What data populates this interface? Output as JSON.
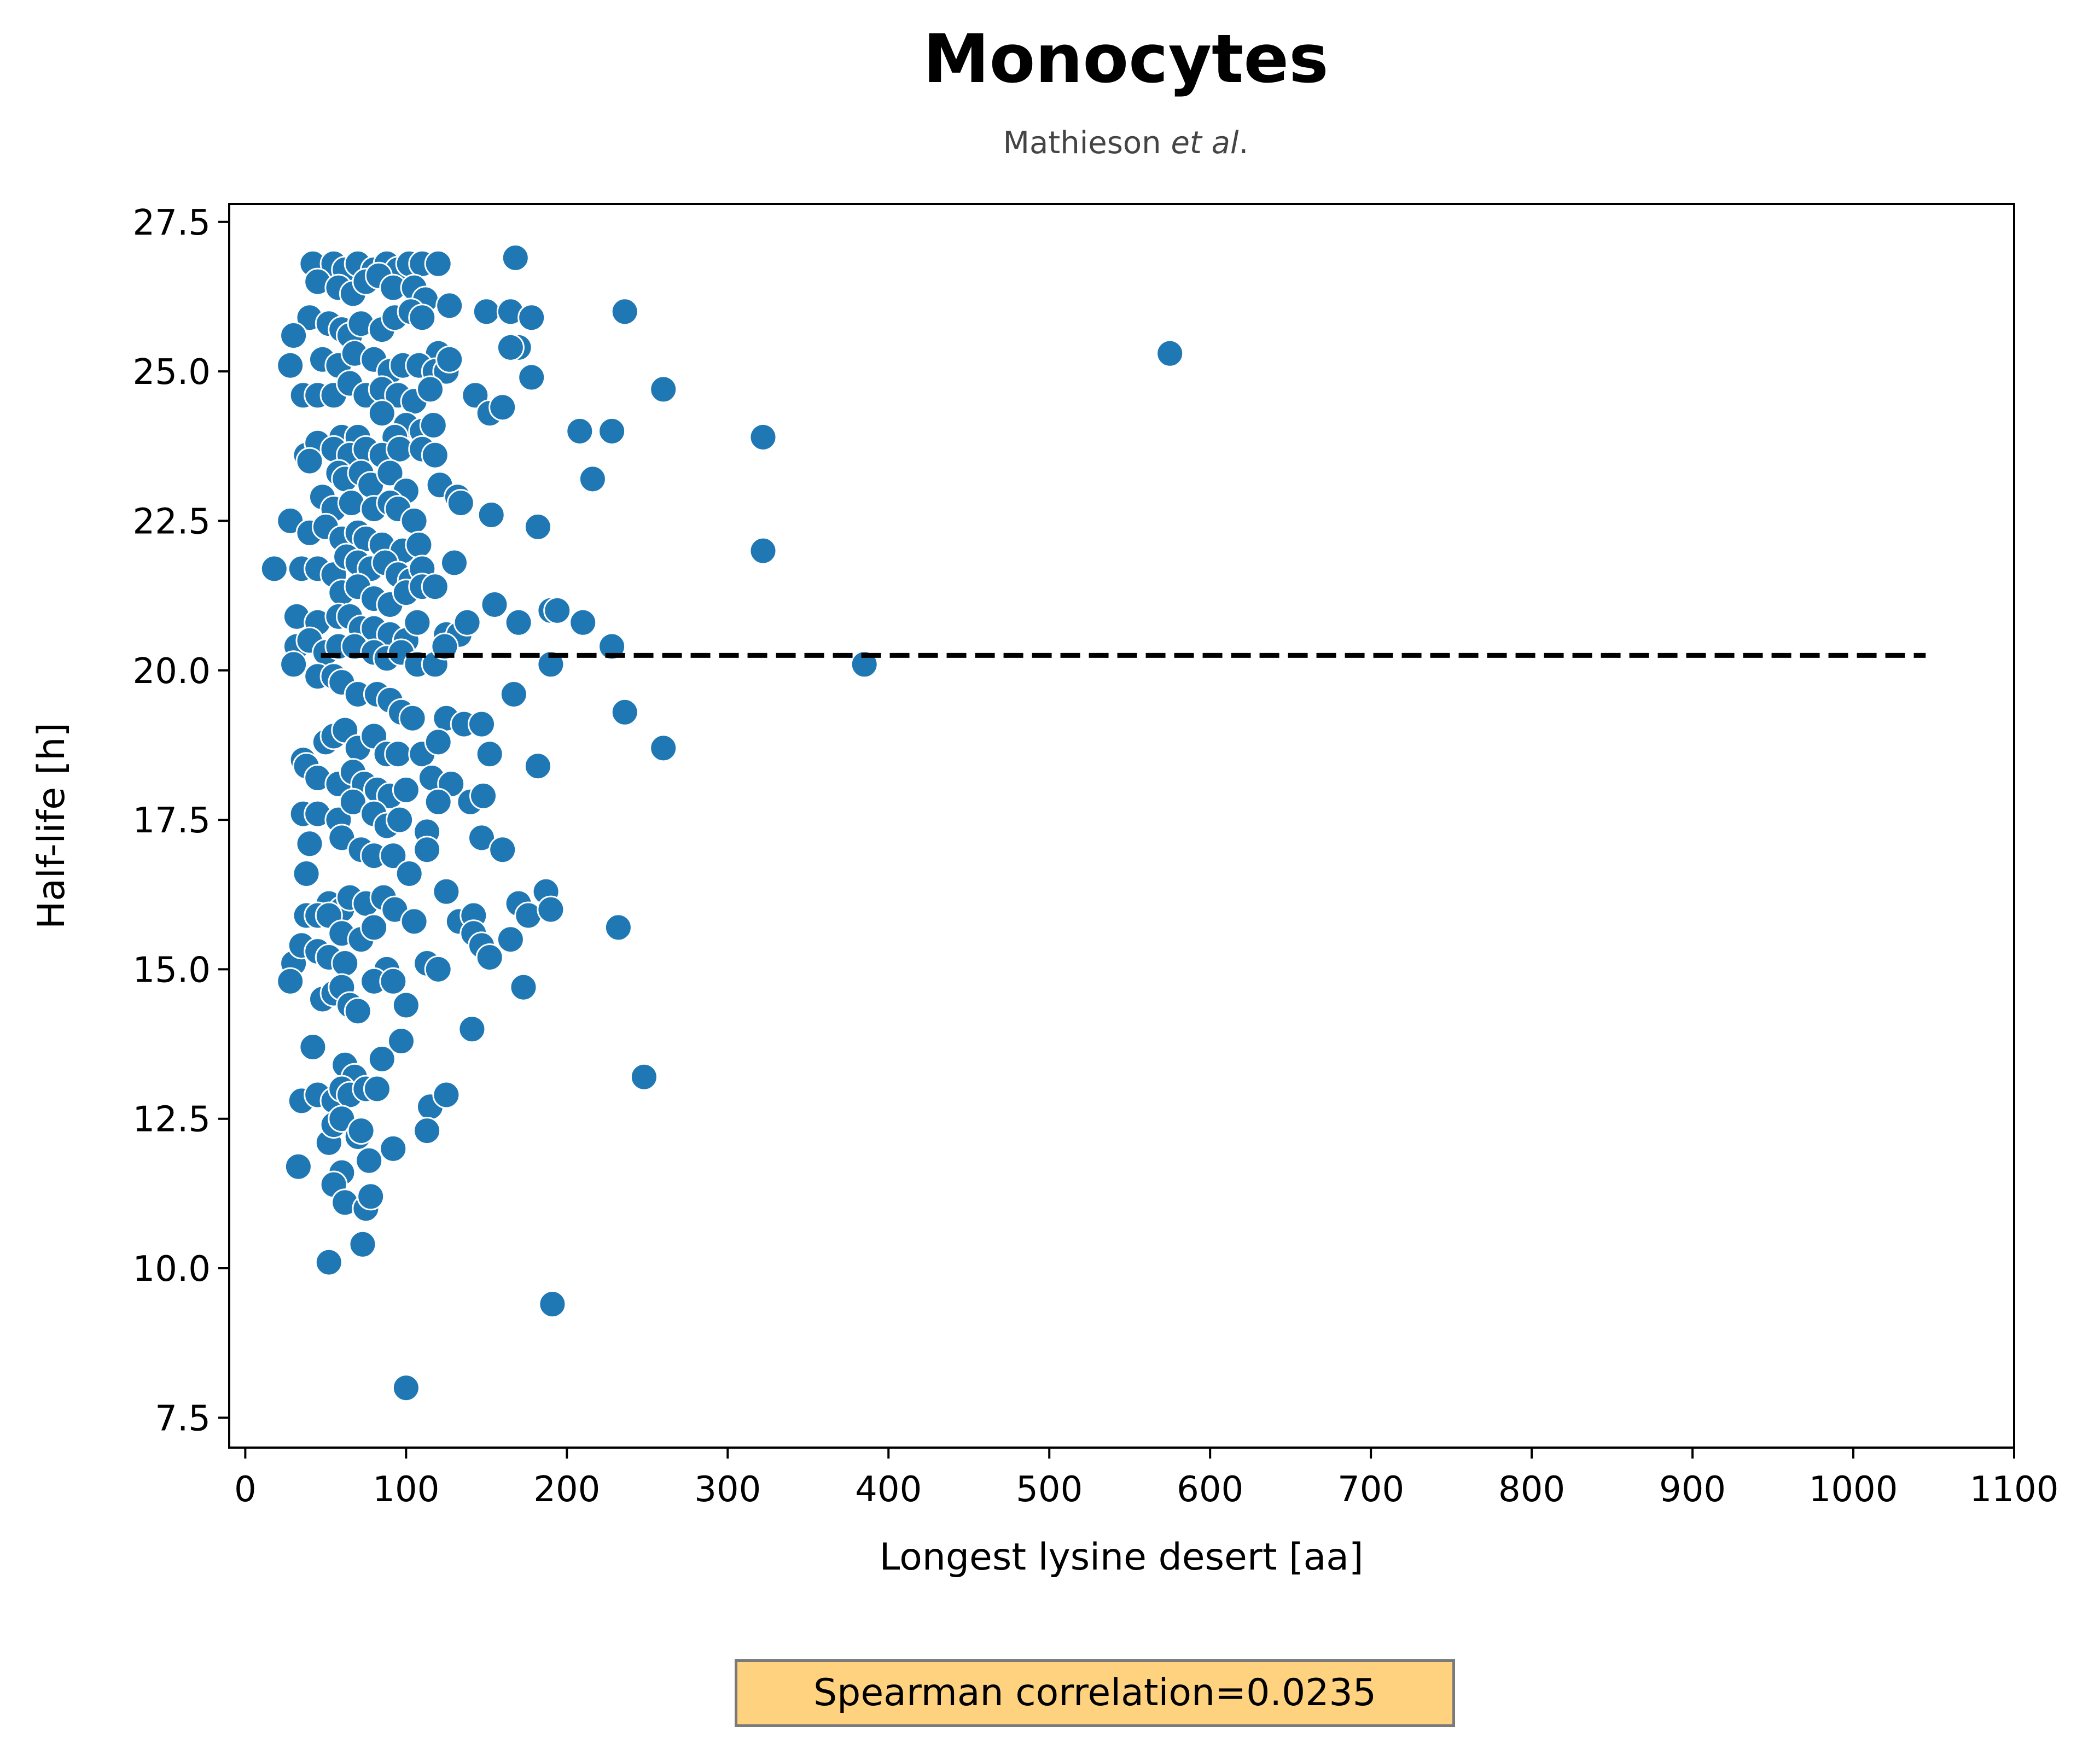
{
  "chart_data": {
    "type": "scatter",
    "title": "Monocytes",
    "subtitle": {
      "author": "Mathieson ",
      "etal": "et al",
      "suffix": "."
    },
    "xlabel": "Longest lysine desert [aa]",
    "ylabel": "Half-life [h]",
    "xlim": [
      -10,
      1100
    ],
    "ylim": [
      7.0,
      27.8
    ],
    "xticks": [
      0,
      100,
      200,
      300,
      400,
      500,
      600,
      700,
      800,
      900,
      1000,
      1100
    ],
    "yticks": [
      7.5,
      10.0,
      12.5,
      15.0,
      17.5,
      20.0,
      22.5,
      25.0,
      27.5
    ],
    "grid": false,
    "marker_color": "#1f77b4",
    "reference_line": {
      "style": "dashed",
      "color": "#000000",
      "y": 20.25,
      "x": [
        47,
        1045
      ]
    },
    "annotation": "Spearman correlation=0.0235",
    "series": [
      {
        "points": [
          [
            42,
            26.8
          ],
          [
            55,
            26.8
          ],
          [
            62,
            26.7
          ],
          [
            70,
            26.8
          ],
          [
            80,
            26.7
          ],
          [
            88,
            26.8
          ],
          [
            95,
            26.7
          ],
          [
            102,
            26.8
          ],
          [
            110,
            26.8
          ],
          [
            120,
            26.8
          ],
          [
            168,
            26.9
          ],
          [
            45,
            26.5
          ],
          [
            58,
            26.4
          ],
          [
            67,
            26.3
          ],
          [
            75,
            26.5
          ],
          [
            83,
            26.6
          ],
          [
            92,
            26.4
          ],
          [
            105,
            26.4
          ],
          [
            112,
            26.2
          ],
          [
            127,
            26.1
          ],
          [
            150,
            26.0
          ],
          [
            165,
            26.0
          ],
          [
            178,
            25.9
          ],
          [
            236,
            26.0
          ],
          [
            40,
            25.9
          ],
          [
            52,
            25.8
          ],
          [
            60,
            25.7
          ],
          [
            65,
            25.6
          ],
          [
            72,
            25.8
          ],
          [
            85,
            25.7
          ],
          [
            93,
            25.9
          ],
          [
            103,
            26.0
          ],
          [
            110,
            25.9
          ],
          [
            120,
            25.3
          ],
          [
            30,
            25.6
          ],
          [
            170,
            25.4
          ],
          [
            165,
            25.4
          ],
          [
            28,
            25.1
          ],
          [
            48,
            25.2
          ],
          [
            58,
            25.1
          ],
          [
            68,
            25.3
          ],
          [
            80,
            25.2
          ],
          [
            90,
            25.0
          ],
          [
            98,
            25.1
          ],
          [
            108,
            25.1
          ],
          [
            118,
            25.0
          ],
          [
            125,
            25.0
          ],
          [
            127,
            25.2
          ],
          [
            178,
            24.9
          ],
          [
            260,
            24.7
          ],
          [
            36,
            24.6
          ],
          [
            45,
            24.6
          ],
          [
            55,
            24.6
          ],
          [
            65,
            24.8
          ],
          [
            75,
            24.6
          ],
          [
            85,
            24.7
          ],
          [
            95,
            24.6
          ],
          [
            105,
            24.5
          ],
          [
            115,
            24.7
          ],
          [
            143,
            24.6
          ],
          [
            152,
            24.3
          ],
          [
            160,
            24.4
          ],
          [
            85,
            24.3
          ],
          [
            100,
            24.1
          ],
          [
            110,
            24.0
          ],
          [
            117,
            24.1
          ],
          [
            208,
            24.0
          ],
          [
            228,
            24.0
          ],
          [
            322,
            23.9
          ],
          [
            60,
            23.9
          ],
          [
            70,
            23.9
          ],
          [
            93,
            23.9
          ],
          [
            38,
            23.6
          ],
          [
            45,
            23.8
          ],
          [
            55,
            23.7
          ],
          [
            65,
            23.6
          ],
          [
            75,
            23.7
          ],
          [
            85,
            23.6
          ],
          [
            96,
            23.7
          ],
          [
            110,
            23.7
          ],
          [
            118,
            23.6
          ],
          [
            216,
            23.2
          ],
          [
            40,
            23.5
          ],
          [
            58,
            23.3
          ],
          [
            62,
            23.2
          ],
          [
            72,
            23.3
          ],
          [
            78,
            23.1
          ],
          [
            90,
            23.3
          ],
          [
            100,
            23.0
          ],
          [
            121,
            23.1
          ],
          [
            132,
            22.9
          ],
          [
            134,
            22.8
          ],
          [
            48,
            22.9
          ],
          [
            55,
            22.7
          ],
          [
            66,
            22.8
          ],
          [
            80,
            22.7
          ],
          [
            90,
            22.8
          ],
          [
            95,
            22.7
          ],
          [
            105,
            22.5
          ],
          [
            153,
            22.6
          ],
          [
            182,
            22.4
          ],
          [
            28,
            22.5
          ],
          [
            40,
            22.3
          ],
          [
            50,
            22.4
          ],
          [
            60,
            22.2
          ],
          [
            70,
            22.3
          ],
          [
            75,
            22.2
          ],
          [
            85,
            22.1
          ],
          [
            98,
            22.0
          ],
          [
            108,
            22.1
          ],
          [
            322,
            22.0
          ],
          [
            18,
            21.7
          ],
          [
            35,
            21.7
          ],
          [
            45,
            21.7
          ],
          [
            55,
            21.6
          ],
          [
            63,
            21.9
          ],
          [
            70,
            21.8
          ],
          [
            78,
            21.7
          ],
          [
            87,
            21.8
          ],
          [
            95,
            21.6
          ],
          [
            103,
            21.5
          ],
          [
            110,
            21.7
          ],
          [
            130,
            21.8
          ],
          [
            60,
            21.3
          ],
          [
            70,
            21.4
          ],
          [
            80,
            21.2
          ],
          [
            90,
            21.1
          ],
          [
            100,
            21.3
          ],
          [
            110,
            21.4
          ],
          [
            118,
            21.4
          ],
          [
            155,
            21.1
          ],
          [
            190,
            21.0
          ],
          [
            194,
            21.0
          ],
          [
            32,
            20.9
          ],
          [
            45,
            20.8
          ],
          [
            58,
            20.9
          ],
          [
            65,
            20.9
          ],
          [
            72,
            20.7
          ],
          [
            80,
            20.7
          ],
          [
            90,
            20.6
          ],
          [
            100,
            20.5
          ],
          [
            107,
            20.8
          ],
          [
            125,
            20.6
          ],
          [
            133,
            20.6
          ],
          [
            138,
            20.8
          ],
          [
            170,
            20.8
          ],
          [
            210,
            20.8
          ],
          [
            32,
            20.4
          ],
          [
            40,
            20.5
          ],
          [
            50,
            20.3
          ],
          [
            58,
            20.4
          ],
          [
            68,
            20.4
          ],
          [
            80,
            20.3
          ],
          [
            88,
            20.2
          ],
          [
            97,
            20.3
          ],
          [
            107,
            20.1
          ],
          [
            118,
            20.1
          ],
          [
            124,
            20.4
          ],
          [
            190,
            20.1
          ],
          [
            228,
            20.4
          ],
          [
            385,
            20.1
          ],
          [
            30,
            20.1
          ],
          [
            45,
            19.9
          ],
          [
            55,
            19.9
          ],
          [
            60,
            19.8
          ],
          [
            70,
            19.6
          ],
          [
            82,
            19.6
          ],
          [
            90,
            19.5
          ],
          [
            97,
            19.3
          ],
          [
            104,
            19.2
          ],
          [
            125,
            19.2
          ],
          [
            136,
            19.1
          ],
          [
            147,
            19.1
          ],
          [
            167,
            19.6
          ],
          [
            236,
            19.3
          ],
          [
            50,
            18.8
          ],
          [
            55,
            18.9
          ],
          [
            62,
            19.0
          ],
          [
            70,
            18.7
          ],
          [
            80,
            18.9
          ],
          [
            88,
            18.6
          ],
          [
            95,
            18.6
          ],
          [
            110,
            18.6
          ],
          [
            120,
            18.8
          ],
          [
            152,
            18.6
          ],
          [
            182,
            18.4
          ],
          [
            260,
            18.7
          ],
          [
            36,
            18.5
          ],
          [
            38,
            18.4
          ],
          [
            45,
            18.2
          ],
          [
            58,
            18.1
          ],
          [
            67,
            18.3
          ],
          [
            74,
            18.1
          ],
          [
            82,
            18.0
          ],
          [
            90,
            17.9
          ],
          [
            100,
            18.0
          ],
          [
            116,
            18.2
          ],
          [
            128,
            18.1
          ],
          [
            140,
            17.8
          ],
          [
            148,
            17.9
          ],
          [
            36,
            17.6
          ],
          [
            45,
            17.6
          ],
          [
            58,
            17.5
          ],
          [
            67,
            17.8
          ],
          [
            80,
            17.6
          ],
          [
            88,
            17.4
          ],
          [
            96,
            17.5
          ],
          [
            113,
            17.3
          ],
          [
            120,
            17.8
          ],
          [
            147,
            17.2
          ],
          [
            160,
            17.0
          ],
          [
            40,
            17.1
          ],
          [
            60,
            17.2
          ],
          [
            72,
            17.0
          ],
          [
            80,
            16.9
          ],
          [
            92,
            16.9
          ],
          [
            102,
            16.6
          ],
          [
            113,
            17.0
          ],
          [
            38,
            16.6
          ],
          [
            52,
            16.1
          ],
          [
            60,
            16.0
          ],
          [
            65,
            16.2
          ],
          [
            75,
            16.1
          ],
          [
            86,
            16.2
          ],
          [
            93,
            16.0
          ],
          [
            105,
            15.8
          ],
          [
            125,
            16.3
          ],
          [
            133,
            15.8
          ],
          [
            142,
            15.9
          ],
          [
            170,
            16.1
          ],
          [
            176,
            15.9
          ],
          [
            187,
            16.3
          ],
          [
            190,
            16.0
          ],
          [
            38,
            15.9
          ],
          [
            45,
            15.9
          ],
          [
            52,
            15.9
          ],
          [
            60,
            15.6
          ],
          [
            72,
            15.5
          ],
          [
            80,
            15.7
          ],
          [
            142,
            15.6
          ],
          [
            147,
            15.4
          ],
          [
            152,
            15.2
          ],
          [
            165,
            15.5
          ],
          [
            232,
            15.7
          ],
          [
            30,
            15.1
          ],
          [
            35,
            15.4
          ],
          [
            45,
            15.3
          ],
          [
            52,
            15.2
          ],
          [
            62,
            15.1
          ],
          [
            88,
            15.0
          ],
          [
            113,
            15.1
          ],
          [
            120,
            15.0
          ],
          [
            28,
            14.8
          ],
          [
            48,
            14.5
          ],
          [
            55,
            14.6
          ],
          [
            60,
            14.7
          ],
          [
            65,
            14.4
          ],
          [
            70,
            14.3
          ],
          [
            80,
            14.8
          ],
          [
            92,
            14.8
          ],
          [
            100,
            14.4
          ],
          [
            173,
            14.7
          ],
          [
            42,
            13.7
          ],
          [
            62,
            13.4
          ],
          [
            68,
            13.2
          ],
          [
            85,
            13.5
          ],
          [
            97,
            13.8
          ],
          [
            141,
            14.0
          ],
          [
            248,
            13.2
          ],
          [
            35,
            12.8
          ],
          [
            45,
            12.9
          ],
          [
            55,
            12.8
          ],
          [
            60,
            13.0
          ],
          [
            65,
            12.9
          ],
          [
            75,
            13.0
          ],
          [
            82,
            13.0
          ],
          [
            115,
            12.7
          ],
          [
            125,
            12.9
          ],
          [
            52,
            12.1
          ],
          [
            55,
            12.4
          ],
          [
            60,
            12.5
          ],
          [
            70,
            12.2
          ],
          [
            72,
            12.3
          ],
          [
            92,
            12.0
          ],
          [
            113,
            12.3
          ],
          [
            33,
            11.7
          ],
          [
            60,
            11.6
          ],
          [
            55,
            11.4
          ],
          [
            62,
            11.1
          ],
          [
            75,
            11.0
          ],
          [
            78,
            11.2
          ],
          [
            77,
            11.8
          ],
          [
            52,
            10.1
          ],
          [
            73,
            10.4
          ],
          [
            191,
            9.4
          ],
          [
            100,
            8.0
          ],
          [
            575,
            25.3
          ]
        ]
      }
    ]
  }
}
